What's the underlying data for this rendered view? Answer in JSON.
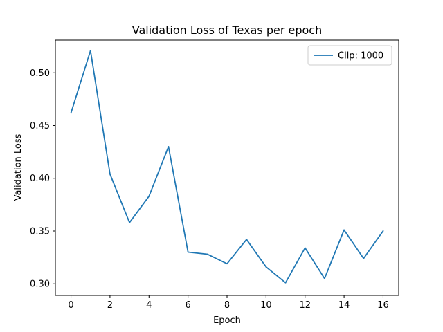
{
  "chart_data": {
    "type": "line",
    "title": "Validation Loss of Texas per epoch",
    "xlabel": "Epoch",
    "ylabel": "Validation Loss",
    "xlim": [
      -0.8,
      16.8
    ],
    "ylim": [
      0.289,
      0.531
    ],
    "xticks": [
      0,
      2,
      4,
      6,
      8,
      10,
      12,
      14,
      16
    ],
    "xtick_labels": [
      "0",
      "2",
      "4",
      "6",
      "8",
      "10",
      "12",
      "14",
      "16"
    ],
    "yticks": [
      0.3,
      0.35,
      0.4,
      0.45,
      0.5
    ],
    "ytick_labels": [
      "0.30",
      "0.35",
      "0.40",
      "0.45",
      "0.50"
    ],
    "grid": false,
    "legend_position": "upper right",
    "series": [
      {
        "name": "Clip: 1000",
        "color": "#1f77b4",
        "x": [
          0,
          1,
          2,
          3,
          4,
          5,
          6,
          7,
          8,
          9,
          10,
          11,
          12,
          13,
          14,
          15,
          16
        ],
        "y": [
          0.462,
          0.521,
          0.404,
          0.358,
          0.383,
          0.43,
          0.33,
          0.328,
          0.319,
          0.342,
          0.316,
          0.301,
          0.334,
          0.305,
          0.351,
          0.324,
          0.35
        ]
      }
    ]
  }
}
